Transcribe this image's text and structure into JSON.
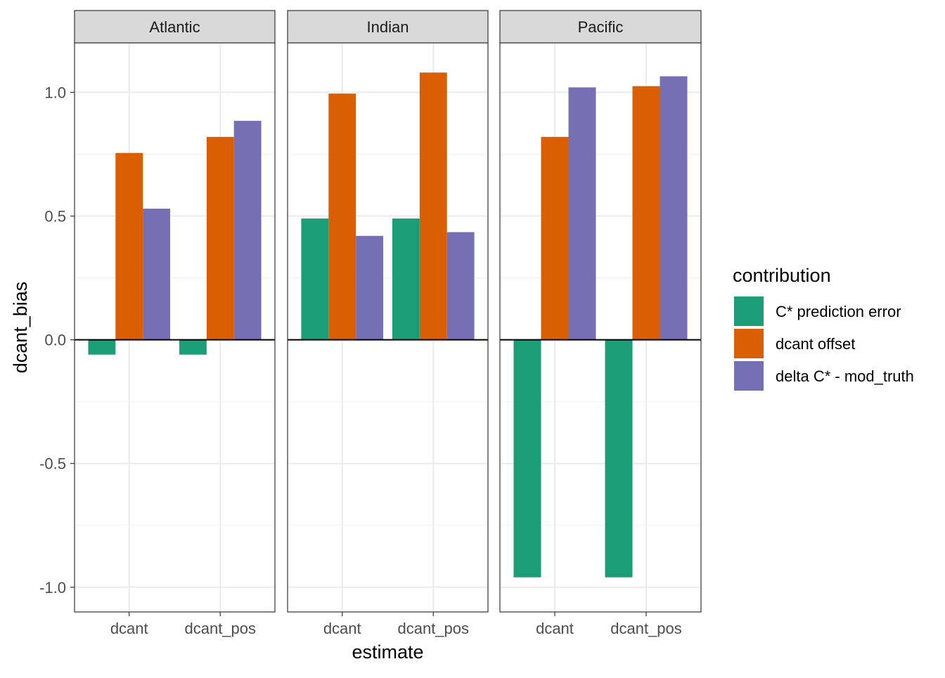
{
  "chart_data": {
    "type": "bar",
    "facets": [
      "Atlantic",
      "Indian",
      "Pacific"
    ],
    "categories": [
      "dcant",
      "dcant_pos"
    ],
    "xlabel": "estimate",
    "ylabel": "dcant_bias",
    "ylim": [
      -1.1,
      1.2
    ],
    "yticks": [
      -1.0,
      -0.5,
      0.0,
      0.5,
      1.0
    ],
    "ytick_labels": [
      "-1.0",
      "-0.5",
      "0.0",
      "0.5",
      "1.0"
    ],
    "grid": true,
    "legend": {
      "title": "contribution",
      "placement": "right"
    },
    "series": [
      {
        "name": "C* prediction error",
        "color": "#1B9E77",
        "values": {
          "Atlantic": [
            -0.06,
            -0.06
          ],
          "Indian": [
            0.49,
            0.49
          ],
          "Pacific": [
            -0.96,
            -0.96
          ]
        }
      },
      {
        "name": "dcant offset",
        "color": "#D95F02",
        "values": {
          "Atlantic": [
            0.755,
            0.82
          ],
          "Indian": [
            0.995,
            1.08
          ],
          "Pacific": [
            0.82,
            1.025
          ]
        }
      },
      {
        "name": "delta C* - mod_truth",
        "color": "#7570B3",
        "values": {
          "Atlantic": [
            0.53,
            0.885
          ],
          "Indian": [
            0.42,
            0.435
          ],
          "Pacific": [
            1.02,
            1.065
          ]
        }
      }
    ]
  }
}
